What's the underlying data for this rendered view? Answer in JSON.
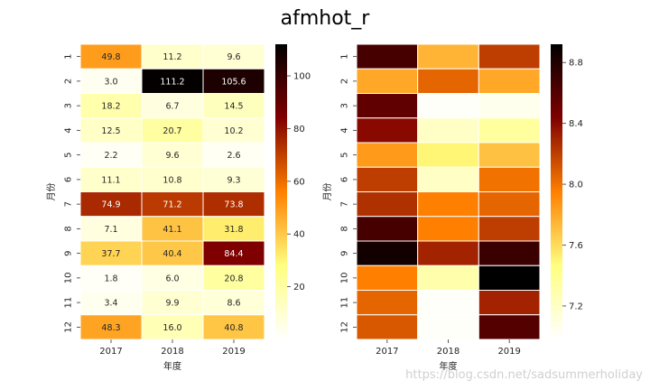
{
  "suptitle": "afmhot_r",
  "watermark": "https://blog.csdn.net/sadsummerholiday",
  "colormap": "afmhot_r",
  "chart_data": [
    {
      "type": "heatmap",
      "xlabel": "年度",
      "ylabel": "月份",
      "x": [
        "2017",
        "2018",
        "2019"
      ],
      "y": [
        "1",
        "2",
        "3",
        "4",
        "5",
        "6",
        "7",
        "8",
        "9",
        "10",
        "11",
        "12"
      ],
      "values": [
        [
          49.8,
          11.2,
          9.6
        ],
        [
          3.0,
          111.2,
          105.6
        ],
        [
          18.2,
          6.7,
          14.5
        ],
        [
          12.5,
          20.7,
          10.2
        ],
        [
          2.2,
          9.6,
          2.6
        ],
        [
          11.1,
          10.8,
          9.3
        ],
        [
          74.9,
          71.2,
          73.8
        ],
        [
          7.1,
          41.1,
          31.8
        ],
        [
          37.7,
          40.4,
          84.4
        ],
        [
          1.8,
          6.0,
          20.8
        ],
        [
          3.4,
          9.9,
          8.6
        ],
        [
          48.3,
          16.0,
          40.8
        ]
      ],
      "value_labels": [
        [
          "49.8",
          "11.2",
          "9.6"
        ],
        [
          "3.0",
          "111.2",
          "105.6"
        ],
        [
          "18.2",
          "6.7",
          "14.5"
        ],
        [
          "12.5",
          "20.7",
          "10.2"
        ],
        [
          "2.2",
          "9.6",
          "2.6"
        ],
        [
          "11.1",
          "10.8",
          "9.3"
        ],
        [
          "74.9",
          "71.2",
          "73.8"
        ],
        [
          "7.1",
          "41.1",
          "31.8"
        ],
        [
          "37.7",
          "40.4",
          "84.4"
        ],
        [
          "1.8",
          "6.0",
          "20.8"
        ],
        [
          "3.4",
          "9.9",
          "8.6"
        ],
        [
          "48.3",
          "16.0",
          "40.8"
        ]
      ],
      "annotated": true,
      "colorbar": {
        "vmin": 0,
        "vmax": 112,
        "ticks": [
          20,
          40,
          60,
          80,
          100
        ],
        "tick_labels": [
          "20",
          "40",
          "60",
          "80",
          "100"
        ]
      }
    },
    {
      "type": "heatmap",
      "xlabel": "年度",
      "ylabel": "月份",
      "x": [
        "2017",
        "2018",
        "2019"
      ],
      "y": [
        "1",
        "2",
        "3",
        "4",
        "5",
        "6",
        "7",
        "8",
        "9",
        "10",
        "11",
        "12"
      ],
      "values": [
        [
          8.65,
          7.75,
          8.2
        ],
        [
          7.8,
          8.05,
          7.8
        ],
        [
          8.55,
          7.0,
          7.05
        ],
        [
          8.4,
          7.2,
          7.35
        ],
        [
          7.85,
          7.5,
          7.7
        ],
        [
          8.2,
          7.2,
          8.0
        ],
        [
          8.25,
          7.95,
          8.05
        ],
        [
          8.65,
          7.95,
          8.2
        ],
        [
          8.85,
          8.3,
          8.7
        ],
        [
          7.95,
          7.3,
          8.95
        ],
        [
          8.05,
          7.0,
          8.3
        ],
        [
          8.1,
          7.0,
          8.6
        ]
      ],
      "annotated": false,
      "colorbar": {
        "vmin": 6.98,
        "vmax": 8.92,
        "ticks": [
          7.2,
          7.6,
          8.0,
          8.4,
          8.8
        ],
        "tick_labels": [
          "7.2",
          "7.6",
          "8.0",
          "8.4",
          "8.8"
        ]
      }
    }
  ]
}
